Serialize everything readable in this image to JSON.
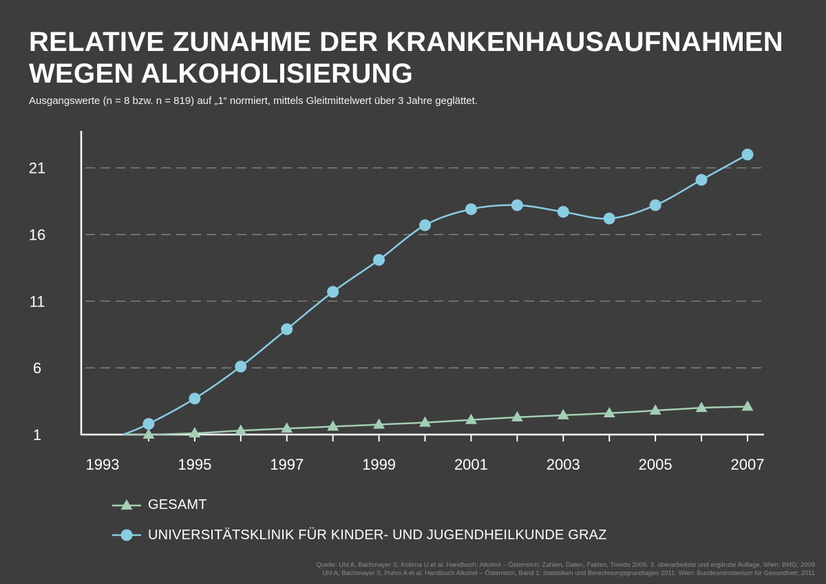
{
  "header": {
    "title_line1": "RELATIVE ZUNAHME DER KRANKENHAUSAUFNAHMEN",
    "title_line2": "WEGEN ALKOHOLISIERUNG",
    "subtitle": "Ausgangswerte (n = 8 bzw. n = 819) auf „1“ normiert, mittels Gleitmittelwert über 3 Jahre geglättet."
  },
  "chart_data": {
    "type": "line",
    "xlim": [
      1993,
      2007
    ],
    "ylim": [
      1,
      23
    ],
    "x_ticks": [
      1993,
      1995,
      1997,
      1999,
      2001,
      2003,
      2005,
      2007
    ],
    "y_ticks": [
      1,
      6,
      11,
      16,
      21
    ],
    "grid": "horizontal dashed",
    "legend_position": "bottom-left",
    "series": [
      {
        "name": "GESAMT",
        "color": "#a3cfb4",
        "marker": "triangle",
        "points": [
          [
            1994,
            1.0
          ],
          [
            1995,
            1.1
          ],
          [
            1996,
            1.3
          ],
          [
            1997,
            1.45
          ],
          [
            1998,
            1.6
          ],
          [
            1999,
            1.75
          ],
          [
            2000,
            1.9
          ],
          [
            2001,
            2.1
          ],
          [
            2002,
            2.3
          ],
          [
            2003,
            2.45
          ],
          [
            2004,
            2.6
          ],
          [
            2005,
            2.8
          ],
          [
            2006,
            3.0
          ],
          [
            2007,
            3.1
          ]
        ]
      },
      {
        "name": "UNIVERSITÄTSKLINIK FÜR KINDER- UND JUGENDHEILKUNDE GRAZ",
        "color": "#89cde3",
        "marker": "circle",
        "points": [
          [
            1994,
            1.8
          ],
          [
            1995,
            3.7
          ],
          [
            1996,
            6.1
          ],
          [
            1997,
            8.9
          ],
          [
            1998,
            11.7
          ],
          [
            1999,
            14.1
          ],
          [
            2000,
            16.7
          ],
          [
            2001,
            17.9
          ],
          [
            2002,
            18.2
          ],
          [
            2003,
            17.7
          ],
          [
            2004,
            17.2
          ],
          [
            2005,
            18.2
          ],
          [
            2006,
            20.1
          ],
          [
            2007,
            22.0
          ]
        ]
      }
    ]
  },
  "source": {
    "line1": "Quelle: Uhl A, Bachmayer S, Kobrna U et al. Handbuch: Alkohol – Österreich: Zahlen, Daten, Fakten, Trends 2009. 3. überarbeitete und ergänzte Auflage. Wien: BMG; 2009",
    "line2": "Uhl A, Bachmayer S, Puhm A et al. Handbuch Alkohol – Österreich, Band 1: Statistiken und Berechnungsgrundlagen 2011. Wien: Bundesministerium für Gesundheit; 2011"
  }
}
